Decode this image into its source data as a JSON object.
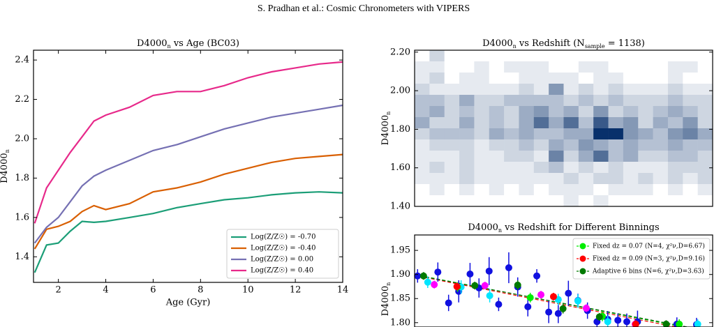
{
  "header": "S. Pradhan et al.: Cosmic Chronometers with VIPERS",
  "chart_data": [
    {
      "type": "line",
      "title": [
        "D4000",
        "n",
        " vs Age (BC03)"
      ],
      "xlabel": "Age (Gyr)",
      "ylabel": [
        "D4000",
        "n"
      ],
      "x": [
        1,
        1.5,
        2,
        2.5,
        3,
        3.5,
        4,
        5,
        6,
        7,
        8,
        9,
        10,
        11,
        12,
        13,
        14
      ],
      "series": [
        {
          "name": "Log(Z/Z☉) = -0.70",
          "color": "#1b9e77",
          "values": [
            1.32,
            1.46,
            1.47,
            1.53,
            1.58,
            1.575,
            1.58,
            1.6,
            1.62,
            1.65,
            1.67,
            1.69,
            1.7,
            1.715,
            1.725,
            1.73,
            1.725
          ]
        },
        {
          "name": "Log(Z/Z☉) = -0.40",
          "color": "#d95f02",
          "values": [
            1.44,
            1.54,
            1.555,
            1.58,
            1.63,
            1.66,
            1.64,
            1.67,
            1.73,
            1.75,
            1.78,
            1.82,
            1.85,
            1.88,
            1.9,
            1.91,
            1.92
          ]
        },
        {
          "name": "Log(Z/Z☉) = 0.00",
          "color": "#7570b3",
          "values": [
            1.47,
            1.55,
            1.6,
            1.68,
            1.76,
            1.81,
            1.84,
            1.89,
            1.94,
            1.97,
            2.01,
            2.05,
            2.08,
            2.11,
            2.13,
            2.15,
            2.17
          ]
        },
        {
          "name": "Log(Z/Z☉) = 0.40",
          "color": "#e7298a",
          "values": [
            1.57,
            1.75,
            1.84,
            1.93,
            2.01,
            2.09,
            2.12,
            2.16,
            2.22,
            2.24,
            2.24,
            2.27,
            2.31,
            2.34,
            2.36,
            2.38,
            2.39
          ]
        }
      ],
      "xlim": [
        0.95,
        14
      ],
      "xticks": [
        2,
        4,
        6,
        8,
        10,
        12,
        14
      ],
      "ylim": [
        1.27,
        2.45
      ],
      "yticks": [
        1.4,
        1.6,
        1.8,
        {
          "value": 2,
          "label": "2.0"
        },
        2.2,
        2.4
      ],
      "legend": "lower right"
    },
    {
      "type": "heatmap",
      "title": [
        "D4000",
        "n",
        " vs Redshift (N",
        "sample",
        " = 1138)"
      ],
      "ylabel": [
        "D4000",
        "n"
      ],
      "ylim": [
        1.4,
        2.21
      ],
      "yticks": [
        {
          "value": 1.4,
          "label": "1.40"
        },
        {
          "value": 1.6,
          "label": "1.60"
        },
        {
          "value": 1.8,
          "label": "1.80"
        },
        {
          "value": 2,
          "label": "2.00"
        },
        {
          "value": 2.2,
          "label": "2.20"
        }
      ],
      "color": "#08306b",
      "z": [
        [
          0,
          2,
          0,
          0,
          0,
          0,
          0,
          0,
          0,
          0,
          0,
          0,
          0,
          0,
          0,
          0,
          0,
          0,
          0,
          0
        ],
        [
          1,
          1,
          0,
          0,
          1,
          0,
          1,
          1,
          1,
          0,
          0,
          1,
          1,
          0,
          0,
          0,
          0,
          1,
          1,
          0
        ],
        [
          1,
          2,
          0,
          1,
          1,
          0,
          0,
          1,
          1,
          1,
          1,
          0,
          1,
          1,
          0,
          0,
          0,
          1,
          0,
          0
        ],
        [
          2,
          1,
          1,
          1,
          1,
          1,
          1,
          2,
          1,
          5,
          1,
          2,
          1,
          2,
          1,
          1,
          1,
          2,
          1,
          1
        ],
        [
          3,
          3,
          2,
          4,
          2,
          2,
          3,
          3,
          3,
          3,
          2,
          3,
          2,
          3,
          2,
          2,
          2,
          3,
          2,
          2
        ],
        [
          3,
          4,
          2,
          3,
          2,
          3,
          2,
          4,
          5,
          3,
          4,
          2,
          5,
          2,
          3,
          2,
          3,
          4,
          3,
          2
        ],
        [
          4,
          2,
          2,
          4,
          2,
          3,
          2,
          4,
          7,
          4,
          7,
          3,
          8,
          4,
          5,
          2,
          4,
          3,
          5,
          2
        ],
        [
          2,
          3,
          3,
          3,
          2,
          4,
          3,
          4,
          3,
          3,
          4,
          4,
          10,
          10,
          5,
          4,
          3,
          5,
          6,
          4
        ],
        [
          1,
          2,
          2,
          2,
          1,
          2,
          2,
          3,
          2,
          4,
          3,
          5,
          4,
          3,
          4,
          3,
          3,
          4,
          3,
          3
        ],
        [
          1,
          1,
          1,
          2,
          1,
          1,
          2,
          2,
          1,
          6,
          2,
          4,
          7,
          3,
          4,
          2,
          2,
          3,
          3,
          2
        ],
        [
          1,
          2,
          1,
          2,
          1,
          1,
          1,
          1,
          2,
          3,
          1,
          2,
          1,
          2,
          1,
          1,
          1,
          2,
          2,
          2
        ],
        [
          1,
          1,
          1,
          2,
          1,
          1,
          1,
          1,
          1,
          1,
          2,
          1,
          2,
          2,
          1,
          2,
          1,
          2,
          1,
          2
        ],
        [
          0,
          1,
          0,
          1,
          0,
          1,
          0,
          1,
          0,
          1,
          1,
          1,
          0,
          1,
          1,
          1,
          0,
          1,
          0,
          1
        ],
        [
          0,
          0,
          0,
          0,
          0,
          0,
          0,
          0,
          0,
          0,
          1,
          0,
          1,
          0,
          0,
          0,
          0,
          0,
          0,
          0
        ]
      ]
    },
    {
      "type": "scatter",
      "title": [
        "D4000",
        "n",
        " vs Redshift for Different Binnings"
      ],
      "ylabel": [
        "D4000",
        "n"
      ],
      "xlim": [
        0.5,
        1.0
      ],
      "ylim": [
        1.791,
        1.982
      ],
      "yticks": [
        {
          "value": 1.8,
          "label": "1.80"
        },
        1.85,
        {
          "value": 1.9,
          "label": "1.90"
        },
        1.95
      ],
      "legend": "upper right",
      "fits": [
        {
          "color": "#00cc00",
          "x": [
            0.5,
            1.0
          ],
          "values": [
            1.9,
            1.779
          ]
        },
        {
          "color": "#ff0000",
          "x": [
            0.5,
            1.0
          ],
          "values": [
            1.898,
            1.776
          ]
        },
        {
          "color": "#006400",
          "x": [
            0.5,
            1.0
          ],
          "values": [
            1.899,
            1.781
          ]
        }
      ],
      "series": [
        {
          "color": "#1010e0",
          "x": [
            0.505,
            0.539,
            0.557,
            0.574,
            0.593,
            0.608,
            0.625,
            0.641,
            0.658,
            0.673,
            0.69,
            0.705,
            0.725,
            0.741,
            0.758,
            0.774,
            0.79,
            0.806,
            0.824,
            0.841,
            0.856,
            0.874,
            0.94,
            0.973
          ],
          "values": [
            1.897,
            1.905,
            1.841,
            1.865,
            1.901,
            1.872,
            1.907,
            1.838,
            1.914,
            1.874,
            1.833,
            1.897,
            1.822,
            1.819,
            1.861,
            1.846,
            1.825,
            1.802,
            1.807,
            1.805,
            1.802,
            1.802,
            1.797,
            1.796
          ],
          "errors": [
            0.014,
            0.02,
            0.017,
            0.023,
            0.023,
            0.02,
            0.029,
            0.014,
            0.032,
            0.02,
            0.02,
            0.014,
            0.023,
            0.02,
            0.026,
            0.014,
            0.017,
            0.014,
            0.017,
            0.014,
            0.017,
            0.023,
            0.014,
            0.014
          ]
        },
        {
          "color": "#00e5ff",
          "x": [
            0.522,
            0.578,
            0.626,
            0.741,
            0.774,
            0.824,
            0.975
          ],
          "values": [
            1.884,
            1.874,
            1.856,
            1.848,
            1.845,
            1.802,
            1.797
          ],
          "errors": [
            0.012,
            0.014,
            0.014,
            0.012,
            0.014,
            0.012,
            0.01
          ]
        },
        {
          "color": "#ff00ff",
          "x": [
            0.533,
            0.618,
            0.712,
            0.788,
            0.87
          ],
          "values": [
            1.879,
            1.877,
            1.858,
            1.83,
            1.797
          ],
          "errors": [
            0.008,
            0.008,
            0.008,
            0.008,
            0.008
          ]
        },
        {
          "name": "Fixed dz = 0.07 (N=4, χ²ν,D=6.67)",
          "color": "#00ee00",
          "x": [
            0.572,
            0.694,
            0.815,
            0.944
          ],
          "values": [
            1.874,
            1.852,
            1.813,
            1.797
          ],
          "errors": [
            0.01,
            0.01,
            0.01,
            0.01
          ]
        },
        {
          "name": "Fixed dz = 0.09 (N=3, χ²ν,D=9.16)",
          "color": "#ff0000",
          "x": [
            0.571,
            0.733,
            0.871
          ],
          "values": [
            1.875,
            1.854,
            1.797
          ],
          "errors": [
            0.008,
            0.008,
            0.008
          ]
        },
        {
          "name": "Adaptive 6 bins (N=6, χ²ν,D=3.63)",
          "color": "#007a00",
          "x": [
            0.515,
            0.601,
            0.673,
            0.749,
            0.81,
            0.922
          ],
          "values": [
            1.897,
            1.877,
            1.878,
            1.829,
            1.812,
            1.797
          ],
          "errors": [
            0.008,
            0.008,
            0.01,
            0.01,
            0.008,
            0.008
          ]
        }
      ]
    }
  ]
}
